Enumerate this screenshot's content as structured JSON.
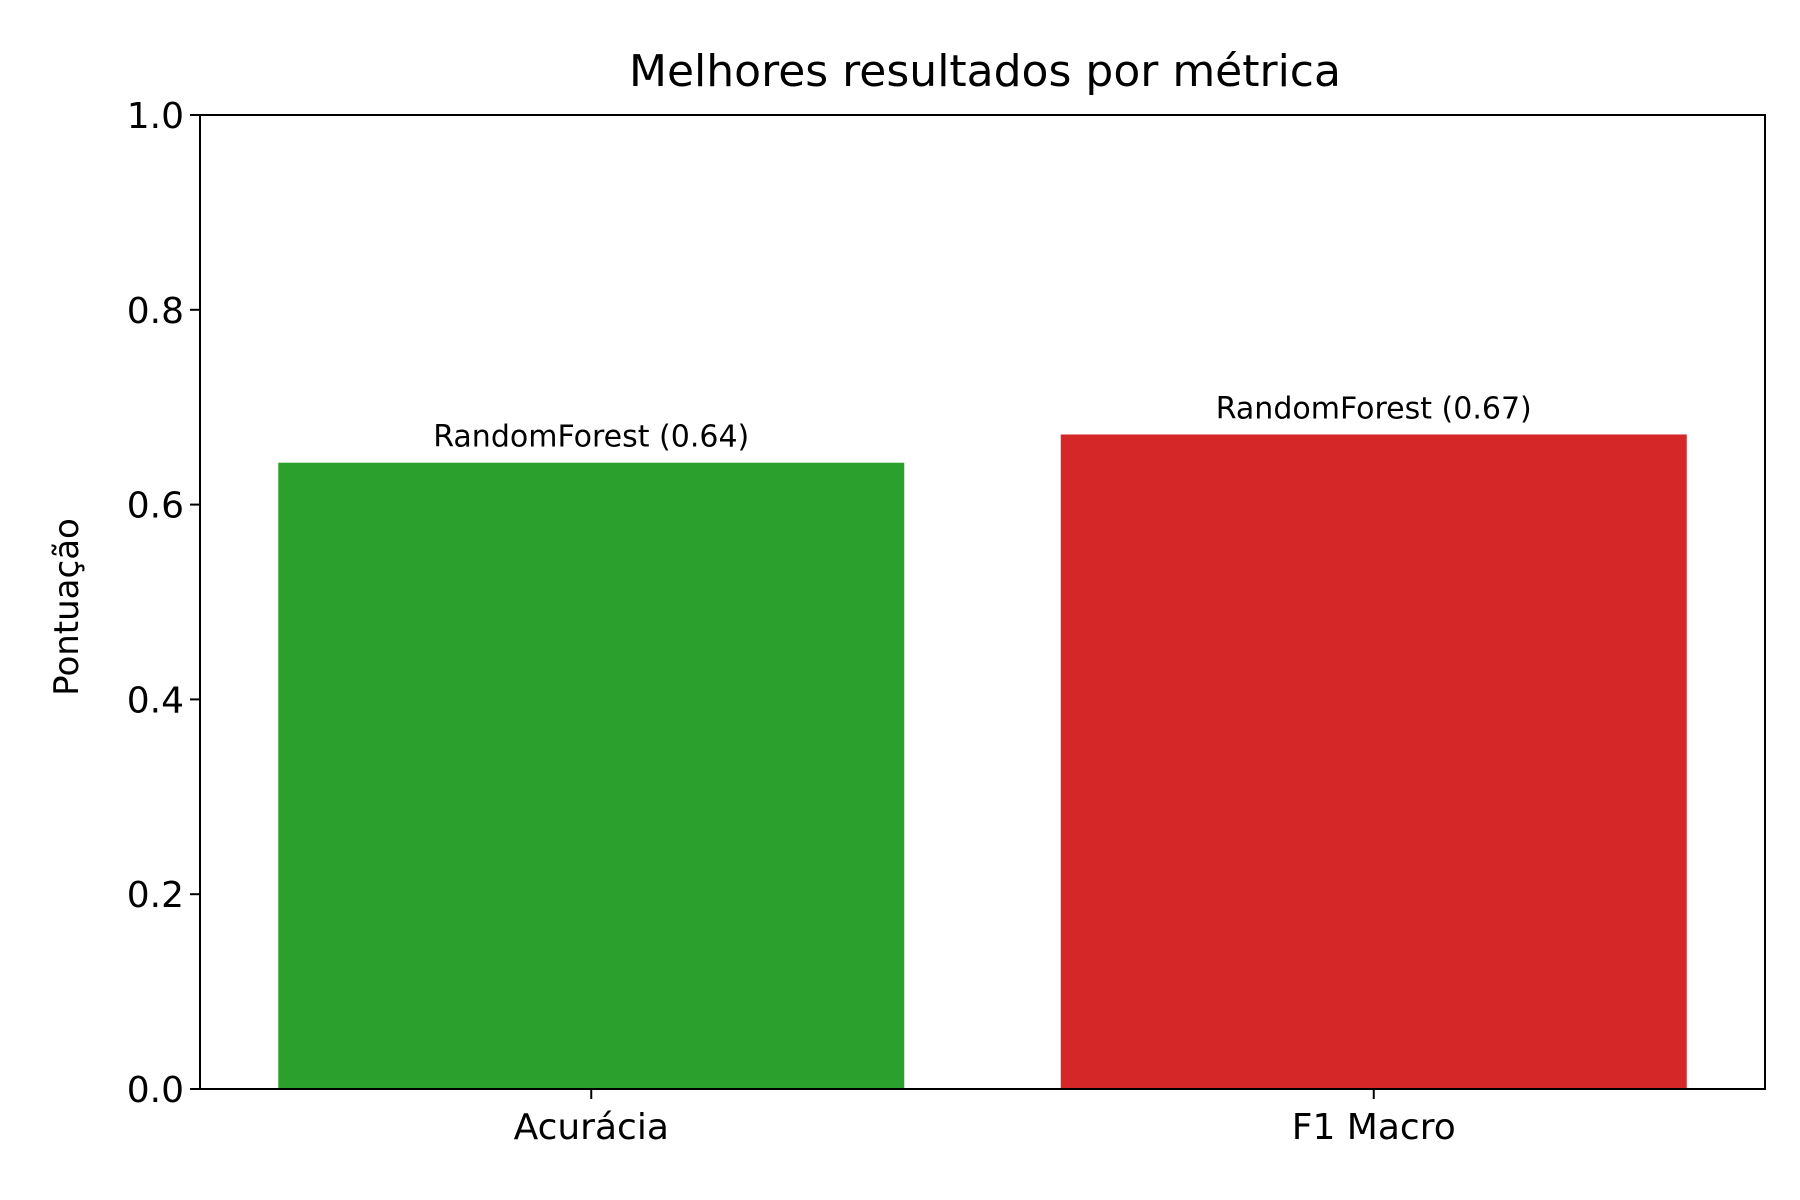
{
  "chart_data": {
    "type": "bar",
    "title": "Melhores resultados por métrica",
    "xlabel": "",
    "ylabel": "Pontuação",
    "ylim": [
      0,
      1.0
    ],
    "yticks": [
      "0.0",
      "0.2",
      "0.4",
      "0.6",
      "0.8",
      "1.0"
    ],
    "categories": [
      "Acurácia",
      "F1 Macro"
    ],
    "values": [
      0.643,
      0.672
    ],
    "bar_labels": [
      "RandomForest (0.64)",
      "RandomForest (0.67)"
    ],
    "colors": [
      "#2ca02c",
      "#d62728"
    ],
    "grid": false,
    "legend": "none"
  }
}
